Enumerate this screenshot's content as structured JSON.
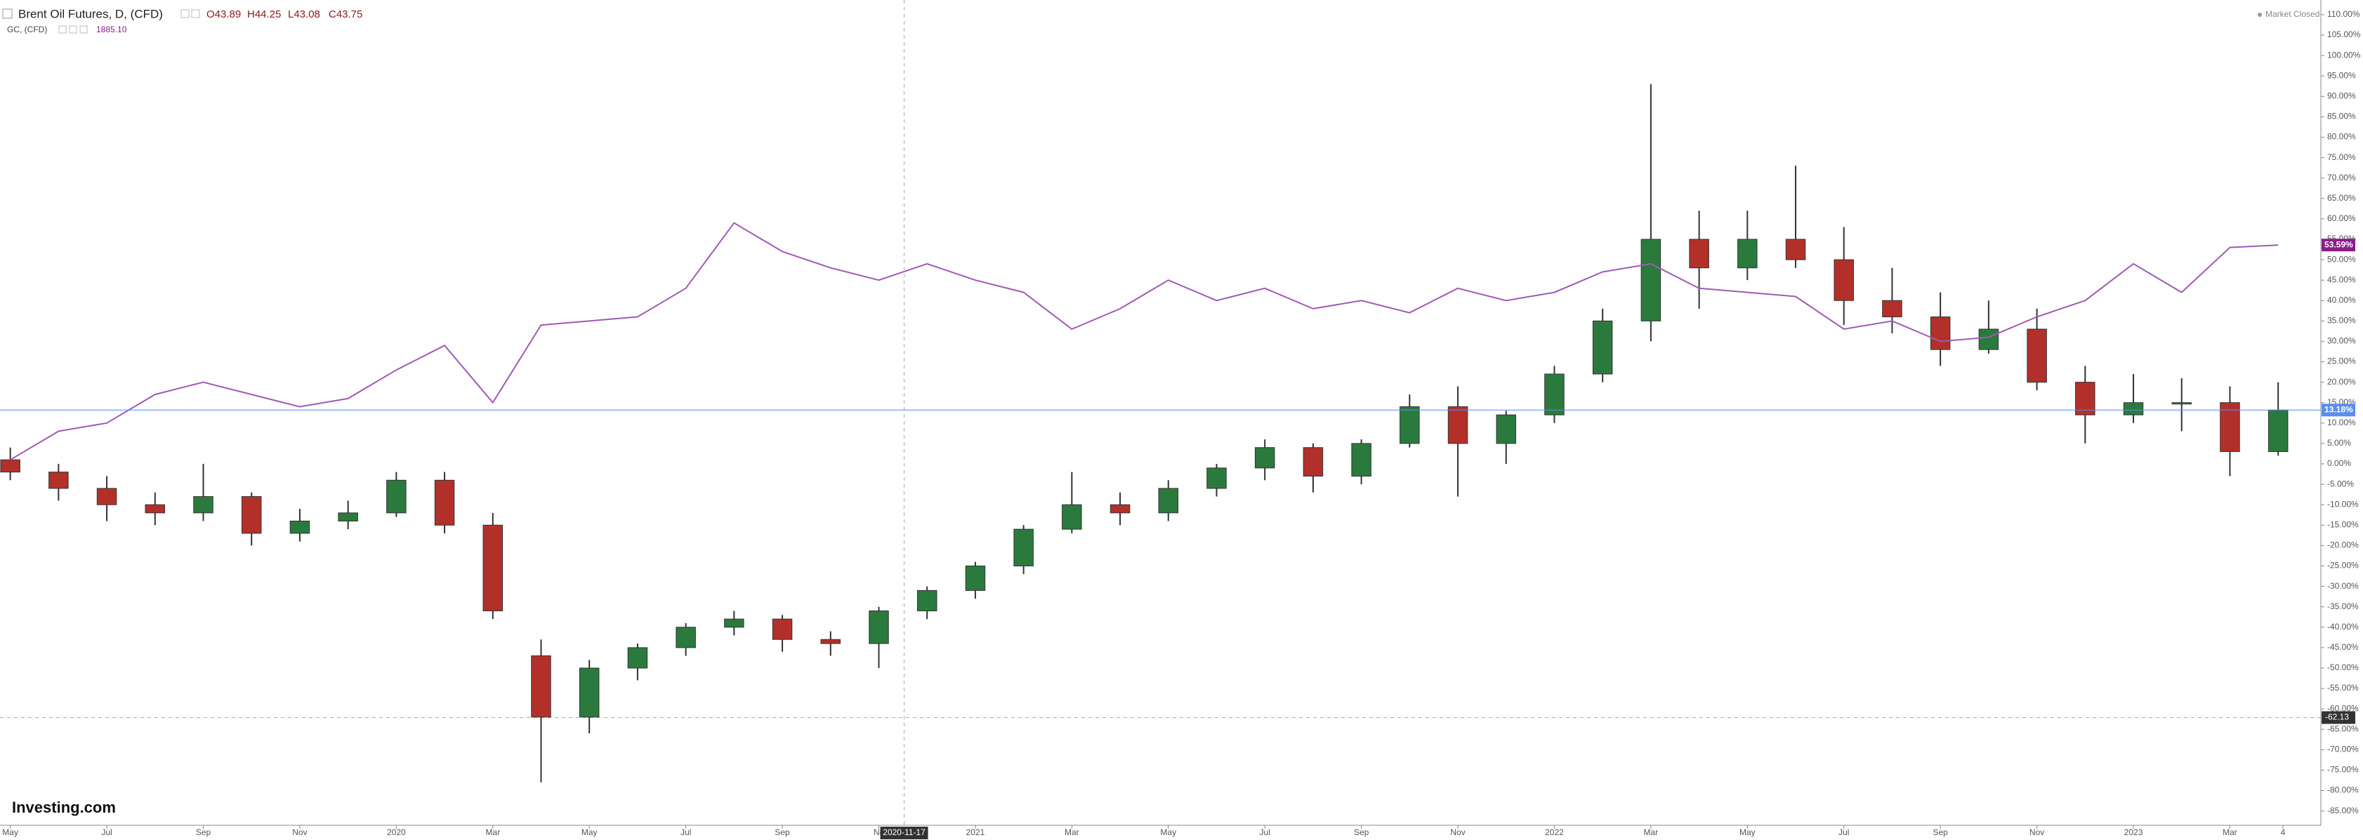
{
  "chart_data": {
    "type": "candlestick",
    "status": "Market Closed",
    "watermark": "Investing.com",
    "x": [
      "2019-05",
      "2019-06",
      "2019-07",
      "2019-08",
      "2019-09",
      "2019-10",
      "2019-11",
      "2019-12",
      "2020-01",
      "2020-02",
      "2020-03",
      "2020-04",
      "2020-05",
      "2020-06",
      "2020-07",
      "2020-08",
      "2020-09",
      "2020-10",
      "2020-11",
      "2020-12",
      "2021-01",
      "2021-02",
      "2021-03",
      "2021-04",
      "2021-05",
      "2021-06",
      "2021-07",
      "2021-08",
      "2021-09",
      "2021-10",
      "2021-11",
      "2021-12",
      "2022-01",
      "2022-02",
      "2022-03",
      "2022-04",
      "2022-05",
      "2022-06",
      "2022-07",
      "2022-08",
      "2022-09",
      "2022-10",
      "2022-11",
      "2022-12",
      "2023-01",
      "2023-02",
      "2023-03",
      "2023-04"
    ],
    "series": [
      {
        "name": "Brent Oil Futures, D, (CFD)",
        "type": "candle",
        "up_color": "#2b7a3d",
        "down_color": "#b3302a",
        "last_ohlc": [
          {
            "value": 43.89,
            "label": "O43.89"
          },
          {
            "value": 44.25,
            "label": "H44.25"
          },
          {
            "value": 43.08,
            "label": "L43.08"
          },
          {
            "value": 43.75,
            "label": "C43.75"
          }
        ],
        "open": [
          1,
          -2,
          -6,
          -10,
          -12,
          -8,
          -17,
          -14,
          -12,
          -4,
          -15,
          -47,
          -62,
          -50,
          -45,
          -40,
          -38,
          -43,
          -44,
          -36,
          -31,
          -25,
          -16,
          -10,
          -12,
          -6,
          -1,
          4,
          -3,
          5,
          14,
          5,
          12,
          22,
          35,
          55,
          48,
          55,
          50,
          40,
          36,
          28,
          33,
          20,
          12,
          15,
          15,
          3
        ],
        "high": [
          4,
          0,
          -3,
          -7,
          0,
          -7,
          -11,
          -9,
          -2,
          -2,
          -12,
          -43,
          -48,
          -44,
          -39,
          -36,
          -37,
          -41,
          -35,
          -30,
          -24,
          -15,
          -2,
          -7,
          -4,
          0,
          6,
          5,
          6,
          17,
          19,
          13,
          24,
          38,
          93,
          62,
          62,
          73,
          58,
          48,
          42,
          40,
          38,
          24,
          22,
          21,
          19,
          20
        ],
        "low": [
          -4,
          -9,
          -14,
          -15,
          -14,
          -20,
          -19,
          -16,
          -13,
          -17,
          -38,
          -78,
          -66,
          -53,
          -47,
          -42,
          -46,
          -47,
          -50,
          -38,
          -33,
          -27,
          -17,
          -15,
          -14,
          -8,
          -4,
          -7,
          -5,
          4,
          -8,
          0,
          10,
          20,
          30,
          38,
          45,
          48,
          34,
          32,
          24,
          27,
          18,
          5,
          10,
          8,
          -3,
          2
        ],
        "close": [
          -2,
          -6,
          -10,
          -12,
          -8,
          -17,
          -14,
          -12,
          -4,
          -15,
          -36,
          -62,
          -50,
          -45,
          -40,
          -38,
          -43,
          -44,
          -36,
          -31,
          -25,
          -16,
          -10,
          -12,
          -6,
          -1,
          4,
          -3,
          5,
          14,
          5,
          12,
          22,
          35,
          55,
          48,
          55,
          50,
          40,
          36,
          28,
          33,
          20,
          12,
          15,
          15,
          3,
          13.18
        ],
        "marker": {
          "value": 13.18,
          "label": "13.18%",
          "color": "#5b8def",
          "line": true
        }
      },
      {
        "name": "GC, (CFD)",
        "type": "line",
        "color": "#a05ab4",
        "last": {
          "value": 1885.1,
          "label": "1885.10"
        },
        "values": [
          1,
          8,
          10,
          17,
          20,
          17,
          14,
          16,
          23,
          29,
          15,
          34,
          35,
          36,
          43,
          59,
          52,
          48,
          45,
          49,
          45,
          42,
          33,
          38,
          45,
          40,
          43,
          38,
          40,
          37,
          43,
          40,
          42,
          47,
          49,
          43,
          42,
          41,
          33,
          35,
          30,
          31,
          36,
          40,
          49,
          42,
          53,
          53.59
        ],
        "marker": {
          "value": 53.59,
          "label": "53.59%",
          "color": "#8b1c8b",
          "line": false
        }
      }
    ],
    "xlim": [
      "2019-04-25",
      "2023-04-28"
    ],
    "xticks": [
      {
        "value": "2019-05",
        "label": "May"
      },
      {
        "value": "2019-07",
        "label": "Jul"
      },
      {
        "value": "2019-09",
        "label": "Sep"
      },
      {
        "value": "2019-11",
        "label": "Nov"
      },
      {
        "value": "2020-01",
        "label": "2020"
      },
      {
        "value": "2020-03",
        "label": "Mar"
      },
      {
        "value": "2020-05",
        "label": "May"
      },
      {
        "value": "2020-07",
        "label": "Jul"
      },
      {
        "value": "2020-09",
        "label": "Sep"
      },
      {
        "value": "2020-11",
        "label": "No"
      },
      {
        "value": "2021-01",
        "label": "2021"
      },
      {
        "value": "2021-03",
        "label": "Mar"
      },
      {
        "value": "2021-05",
        "label": "May"
      },
      {
        "value": "2021-07",
        "label": "Jul"
      },
      {
        "value": "2021-09",
        "label": "Sep"
      },
      {
        "value": "2021-11",
        "label": "Nov"
      },
      {
        "value": "2022-01",
        "label": "2022"
      },
      {
        "value": "2022-03",
        "label": "Mar"
      },
      {
        "value": "2022-05",
        "label": "May"
      },
      {
        "value": "2022-07",
        "label": "Jul"
      },
      {
        "value": "2022-09",
        "label": "Sep"
      },
      {
        "value": "2022-11",
        "label": "Nov"
      },
      {
        "value": "2023-01",
        "label": "2023"
      },
      {
        "value": "2023-03",
        "label": "Mar"
      },
      {
        "value": "2023-04-04",
        "label": "4"
      }
    ],
    "ylim": [
      -88.5,
      113.6
    ],
    "yticks": [
      {
        "value": 110,
        "label": "110.00%"
      },
      {
        "value": 105,
        "label": "105.00%"
      },
      {
        "value": 100,
        "label": "100.00%"
      },
      {
        "value": 95,
        "label": "95.00%"
      },
      {
        "value": 90,
        "label": "90.00%"
      },
      {
        "value": 85,
        "label": "85.00%"
      },
      {
        "value": 80,
        "label": "80.00%"
      },
      {
        "value": 75,
        "label": "75.00%"
      },
      {
        "value": 70,
        "label": "70.00%"
      },
      {
        "value": 65,
        "label": "65.00%"
      },
      {
        "value": 60,
        "label": "60.00%"
      },
      {
        "value": 55,
        "label": "55.00%"
      },
      {
        "value": 50,
        "label": "50.00%"
      },
      {
        "value": 45,
        "label": "45.00%"
      },
      {
        "value": 40,
        "label": "40.00%"
      },
      {
        "value": 35,
        "label": "35.00%"
      },
      {
        "value": 30,
        "label": "30.00%"
      },
      {
        "value": 25,
        "label": "25.00%"
      },
      {
        "value": 20,
        "label": "20.00%"
      },
      {
        "value": 15,
        "label": "15.00%"
      },
      {
        "value": 10,
        "label": "10.00%"
      },
      {
        "value": 5,
        "label": "5.00%"
      },
      {
        "value": 0,
        "label": "0.00%"
      },
      {
        "value": -5,
        "label": "-5.00%"
      },
      {
        "value": -10,
        "label": "-10.00%"
      },
      {
        "value": -15,
        "label": "-15.00%"
      },
      {
        "value": -20,
        "label": "-20.00%"
      },
      {
        "value": -25,
        "label": "-25.00%"
      },
      {
        "value": -30,
        "label": "-30.00%"
      },
      {
        "value": -35,
        "label": "-35.00%"
      },
      {
        "value": -40,
        "label": "-40.00%"
      },
      {
        "value": -45,
        "label": "-45.00%"
      },
      {
        "value": -50,
        "label": "-50.00%"
      },
      {
        "value": -55,
        "label": "-55.00%"
      },
      {
        "value": -60,
        "label": "-60.00%"
      },
      {
        "value": -65,
        "label": "-65.00%"
      },
      {
        "value": -70,
        "label": "-70.00%"
      },
      {
        "value": -75,
        "label": "-75.00%"
      },
      {
        "value": -80,
        "label": "-80.00%"
      },
      {
        "value": -85,
        "label": "-85.00%"
      }
    ],
    "crosshair": {
      "x": {
        "value": "2020-11-17",
        "label": "2020-11-17"
      },
      "y": {
        "value": -62.13,
        "label": "-62.13"
      }
    }
  }
}
